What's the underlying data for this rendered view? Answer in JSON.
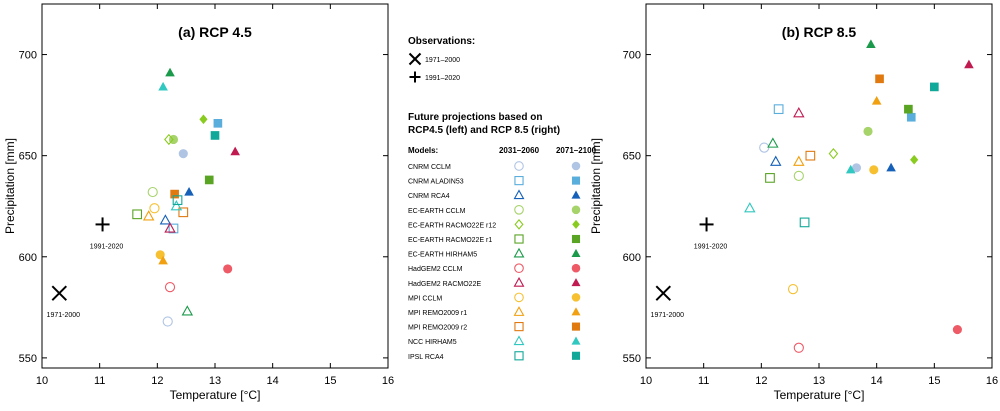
{
  "chart_data": [
    {
      "type": "scatter",
      "title": "(a) RCP 4.5",
      "xlabel": "Temperature [°C]",
      "ylabel": "Precipitation [mm]",
      "xlim": [
        10,
        16
      ],
      "ylim": [
        545,
        725
      ],
      "xticks": [
        "10",
        "11",
        "12",
        "13",
        "14",
        "15",
        "16"
      ],
      "yticks": [
        "550",
        "600",
        "650",
        "700"
      ],
      "observations": [
        {
          "label": "1971-2000",
          "marker": "x",
          "x": 10.3,
          "y": 582
        },
        {
          "label": "1991-2020",
          "marker": "plus",
          "x": 11.05,
          "y": 616
        }
      ],
      "points": [
        {
          "model": 0,
          "period": 0,
          "x": 12.18,
          "y": 568
        },
        {
          "model": 0,
          "period": 1,
          "x": 12.45,
          "y": 651
        },
        {
          "model": 1,
          "period": 0,
          "x": 12.28,
          "y": 614
        },
        {
          "model": 1,
          "period": 1,
          "x": 13.05,
          "y": 666
        },
        {
          "model": 2,
          "period": 0,
          "x": 12.14,
          "y": 618
        },
        {
          "model": 2,
          "period": 1,
          "x": 12.55,
          "y": 632
        },
        {
          "model": 3,
          "period": 0,
          "x": 11.92,
          "y": 632
        },
        {
          "model": 3,
          "period": 1,
          "x": 12.28,
          "y": 658
        },
        {
          "model": 4,
          "period": 0,
          "x": 12.2,
          "y": 658
        },
        {
          "model": 4,
          "period": 1,
          "x": 12.8,
          "y": 668
        },
        {
          "model": 5,
          "period": 0,
          "x": 11.65,
          "y": 621
        },
        {
          "model": 5,
          "period": 1,
          "x": 12.9,
          "y": 638
        },
        {
          "model": 6,
          "period": 0,
          "x": 12.52,
          "y": 573
        },
        {
          "model": 6,
          "period": 1,
          "x": 12.22,
          "y": 691
        },
        {
          "model": 7,
          "period": 0,
          "x": 12.22,
          "y": 585
        },
        {
          "model": 7,
          "period": 1,
          "x": 13.22,
          "y": 594
        },
        {
          "model": 8,
          "period": 0,
          "x": 12.22,
          "y": 614
        },
        {
          "model": 8,
          "period": 1,
          "x": 13.35,
          "y": 652
        },
        {
          "model": 9,
          "period": 0,
          "x": 11.95,
          "y": 624
        },
        {
          "model": 9,
          "period": 1,
          "x": 12.05,
          "y": 601
        },
        {
          "model": 10,
          "period": 0,
          "x": 11.85,
          "y": 620
        },
        {
          "model": 10,
          "period": 1,
          "x": 12.1,
          "y": 598
        },
        {
          "model": 11,
          "period": 0,
          "x": 12.45,
          "y": 622
        },
        {
          "model": 11,
          "period": 1,
          "x": 12.3,
          "y": 631
        },
        {
          "model": 12,
          "period": 0,
          "x": 12.33,
          "y": 625
        },
        {
          "model": 12,
          "period": 1,
          "x": 12.1,
          "y": 684
        },
        {
          "model": 13,
          "period": 0,
          "x": 12.35,
          "y": 628
        },
        {
          "model": 13,
          "period": 1,
          "x": 13.0,
          "y": 660
        }
      ]
    },
    {
      "type": "scatter",
      "title": "(b) RCP 8.5",
      "xlabel": "Temperature [°C]",
      "ylabel": "Precipitation [mm]",
      "xlim": [
        10,
        16
      ],
      "ylim": [
        545,
        725
      ],
      "xticks": [
        "10",
        "11",
        "12",
        "13",
        "14",
        "15",
        "16"
      ],
      "yticks": [
        "550",
        "600",
        "650",
        "700"
      ],
      "observations": [
        {
          "label": "1971-2000",
          "marker": "x",
          "x": 10.3,
          "y": 582
        },
        {
          "label": "1991-2020",
          "marker": "plus",
          "x": 11.05,
          "y": 616
        }
      ],
      "points": [
        {
          "model": 0,
          "period": 0,
          "x": 12.05,
          "y": 654
        },
        {
          "model": 0,
          "period": 1,
          "x": 13.65,
          "y": 644
        },
        {
          "model": 1,
          "period": 0,
          "x": 12.3,
          "y": 673
        },
        {
          "model": 1,
          "period": 1,
          "x": 14.6,
          "y": 669
        },
        {
          "model": 2,
          "period": 0,
          "x": 12.25,
          "y": 647
        },
        {
          "model": 2,
          "period": 1,
          "x": 14.25,
          "y": 644
        },
        {
          "model": 3,
          "period": 0,
          "x": 12.65,
          "y": 640
        },
        {
          "model": 3,
          "period": 1,
          "x": 13.85,
          "y": 662
        },
        {
          "model": 4,
          "period": 0,
          "x": 13.25,
          "y": 651
        },
        {
          "model": 4,
          "period": 1,
          "x": 14.65,
          "y": 648
        },
        {
          "model": 5,
          "period": 0,
          "x": 12.15,
          "y": 639
        },
        {
          "model": 5,
          "period": 1,
          "x": 14.55,
          "y": 673
        },
        {
          "model": 6,
          "period": 0,
          "x": 12.2,
          "y": 656
        },
        {
          "model": 6,
          "period": 1,
          "x": 13.9,
          "y": 705
        },
        {
          "model": 7,
          "period": 0,
          "x": 12.65,
          "y": 555
        },
        {
          "model": 7,
          "period": 1,
          "x": 15.4,
          "y": 564
        },
        {
          "model": 8,
          "period": 0,
          "x": 12.65,
          "y": 671
        },
        {
          "model": 8,
          "period": 1,
          "x": 15.6,
          "y": 695
        },
        {
          "model": 9,
          "period": 0,
          "x": 12.55,
          "y": 584
        },
        {
          "model": 9,
          "period": 1,
          "x": 13.95,
          "y": 643
        },
        {
          "model": 10,
          "period": 0,
          "x": 12.65,
          "y": 647
        },
        {
          "model": 10,
          "period": 1,
          "x": 14.0,
          "y": 677
        },
        {
          "model": 11,
          "period": 0,
          "x": 12.85,
          "y": 650
        },
        {
          "model": 11,
          "period": 1,
          "x": 14.05,
          "y": 688
        },
        {
          "model": 12,
          "period": 0,
          "x": 11.8,
          "y": 624
        },
        {
          "model": 12,
          "period": 1,
          "x": 13.55,
          "y": 643
        },
        {
          "model": 13,
          "period": 0,
          "x": 12.75,
          "y": 617
        },
        {
          "model": 13,
          "period": 1,
          "x": 15.0,
          "y": 684
        }
      ]
    }
  ],
  "legend": {
    "observations_title": "Observations:",
    "obs_items": [
      {
        "label": "1971–2000",
        "marker": "x"
      },
      {
        "label": "1991–2020",
        "marker": "plus"
      }
    ],
    "future_title_line1": "Future projections based on",
    "future_title_line2": "RCP4.5 (left) and RCP 8.5 (right)",
    "models_header": "Models:",
    "period1_header": "2031–2060",
    "period2_header": "2071–2100",
    "models": [
      {
        "name": "CNRM CCLM",
        "shape": "circle",
        "color": "#b0c4e4"
      },
      {
        "name": "CNRM ALADIN53",
        "shape": "square",
        "color": "#5aaedc"
      },
      {
        "name": "CNRM RCA4",
        "shape": "triangle",
        "color": "#1560b8"
      },
      {
        "name": "EC-EARTH CCLM",
        "shape": "circle",
        "color": "#a6d36a"
      },
      {
        "name": "EC-EARTH RACMO22E r12",
        "shape": "diamond",
        "color": "#8acb20"
      },
      {
        "name": "EC-EARTH RACMO22E r1",
        "shape": "square",
        "color": "#5aa424"
      },
      {
        "name": "EC-EARTH HIRHAM5",
        "shape": "triangle",
        "color": "#1a9a4a"
      },
      {
        "name": "HadGEM2 CCLM",
        "shape": "circle",
        "color": "#ee5a66"
      },
      {
        "name": "HadGEM2 RACMO22E",
        "shape": "triangle",
        "color": "#c01a50"
      },
      {
        "name": "MPI CCLM",
        "shape": "circle",
        "color": "#f6c030"
      },
      {
        "name": "MPI REMO2009 r1",
        "shape": "triangle",
        "color": "#f0a010"
      },
      {
        "name": "MPI REMO2009 r2",
        "shape": "square",
        "color": "#e07a10"
      },
      {
        "name": "NCC HIRHAM5",
        "shape": "triangle",
        "color": "#30c8c0"
      },
      {
        "name": "IPSL RCA4",
        "shape": "square",
        "color": "#10a898"
      }
    ]
  }
}
